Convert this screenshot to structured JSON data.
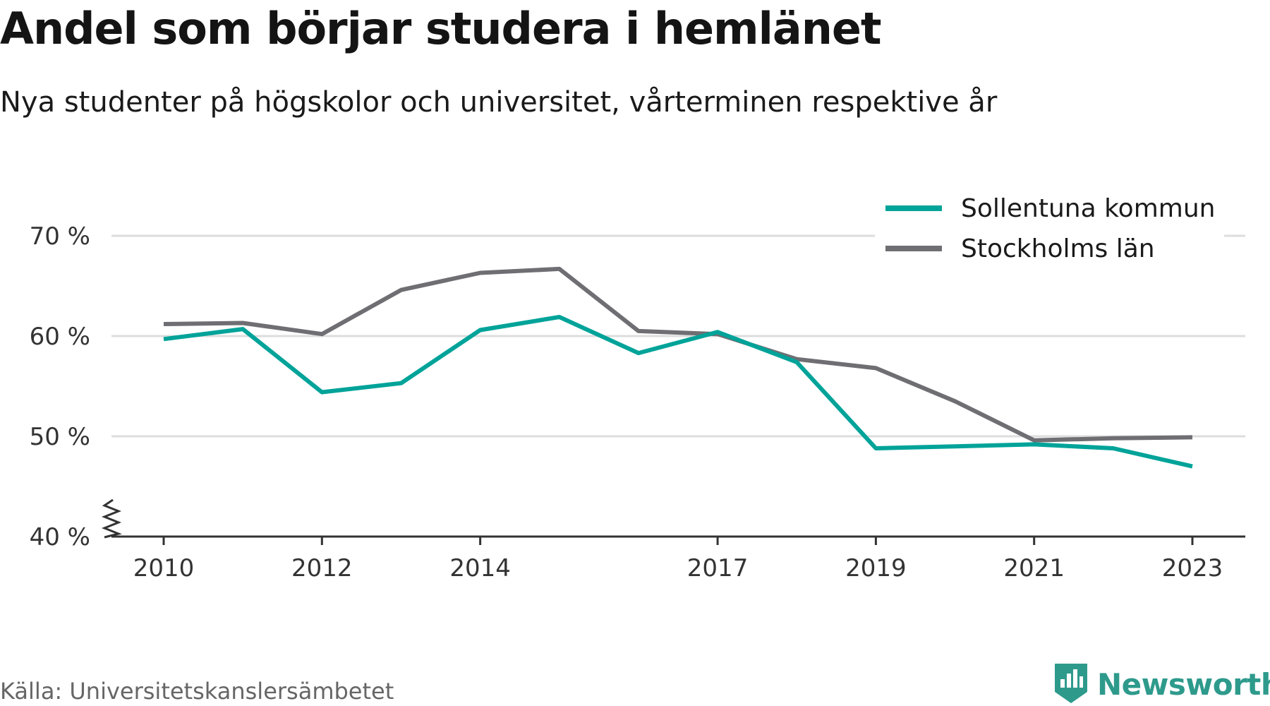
{
  "title": "Andel som börjar studera i hemlänet",
  "subtitle": "Nya studenter på högskolor och universitet, vårterminen respektive år",
  "source": "Källa: Universitetskanslersämbetet",
  "brand": "Newsworthy",
  "colors": {
    "sollentuna": "#00a399",
    "stockholm": "#6f6e73",
    "grid": "#dddddd",
    "axis": "#333333",
    "brand": "#2e9a8c"
  },
  "chart_data": {
    "type": "line",
    "title": "Andel som börjar studera i hemlänet",
    "subtitle": "Nya studenter på högskolor och universitet, vårterminen respektive år",
    "x": [
      2010,
      2011,
      2012,
      2013,
      2014,
      2015,
      2016,
      2017,
      2018,
      2019,
      2020,
      2021,
      2022,
      2023
    ],
    "x_tick_labels": [
      "2010",
      "2012",
      "2014",
      "2017",
      "2019",
      "2021",
      "2023"
    ],
    "y_tick_labels": [
      "40 %",
      "50 %",
      "60 %",
      "70 %"
    ],
    "y_ticks": [
      40,
      50,
      60,
      70
    ],
    "ylim": [
      40,
      72
    ],
    "xlabel": "",
    "ylabel": "",
    "grid": true,
    "axis_break": true,
    "legend_position": "top-right",
    "series": [
      {
        "name": "Sollentuna kommun",
        "color": "#00a399",
        "values": [
          59.7,
          60.7,
          54.4,
          55.3,
          60.6,
          61.9,
          58.3,
          60.4,
          57.4,
          48.8,
          49.0,
          49.2,
          48.8,
          47.0
        ]
      },
      {
        "name": "Stockholms län",
        "color": "#6f6e73",
        "values": [
          61.2,
          61.3,
          60.2,
          64.6,
          66.3,
          66.7,
          60.5,
          60.2,
          57.7,
          56.8,
          53.5,
          49.6,
          49.8,
          49.9
        ]
      }
    ]
  }
}
